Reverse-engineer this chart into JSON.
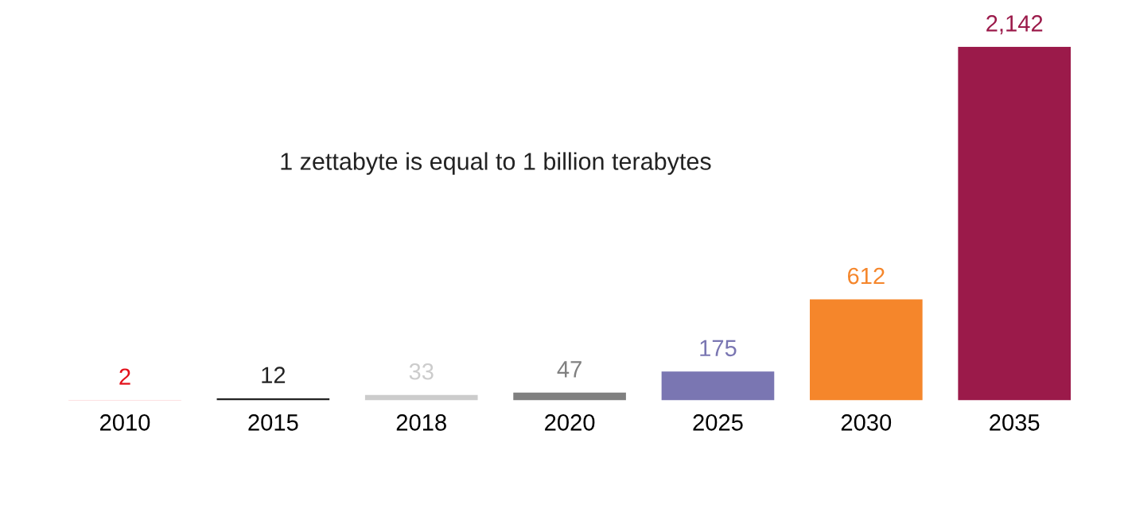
{
  "chart_data": {
    "type": "bar",
    "categories": [
      "2010",
      "2015",
      "2018",
      "2020",
      "2025",
      "2030",
      "2035"
    ],
    "values": [
      2,
      12,
      33,
      47,
      175,
      612,
      2142
    ],
    "colors": [
      "#e3101a",
      "#222222",
      "#cccccc",
      "#808080",
      "#7a76b2",
      "#f5862b",
      "#9b1a4a"
    ],
    "value_labels": [
      "2",
      "12",
      "33",
      "47",
      "175",
      "612",
      "2,142"
    ],
    "annotations": [
      "1 zettabyte is equal to 1 billion terabytes"
    ],
    "grid": false,
    "legend": false
  }
}
